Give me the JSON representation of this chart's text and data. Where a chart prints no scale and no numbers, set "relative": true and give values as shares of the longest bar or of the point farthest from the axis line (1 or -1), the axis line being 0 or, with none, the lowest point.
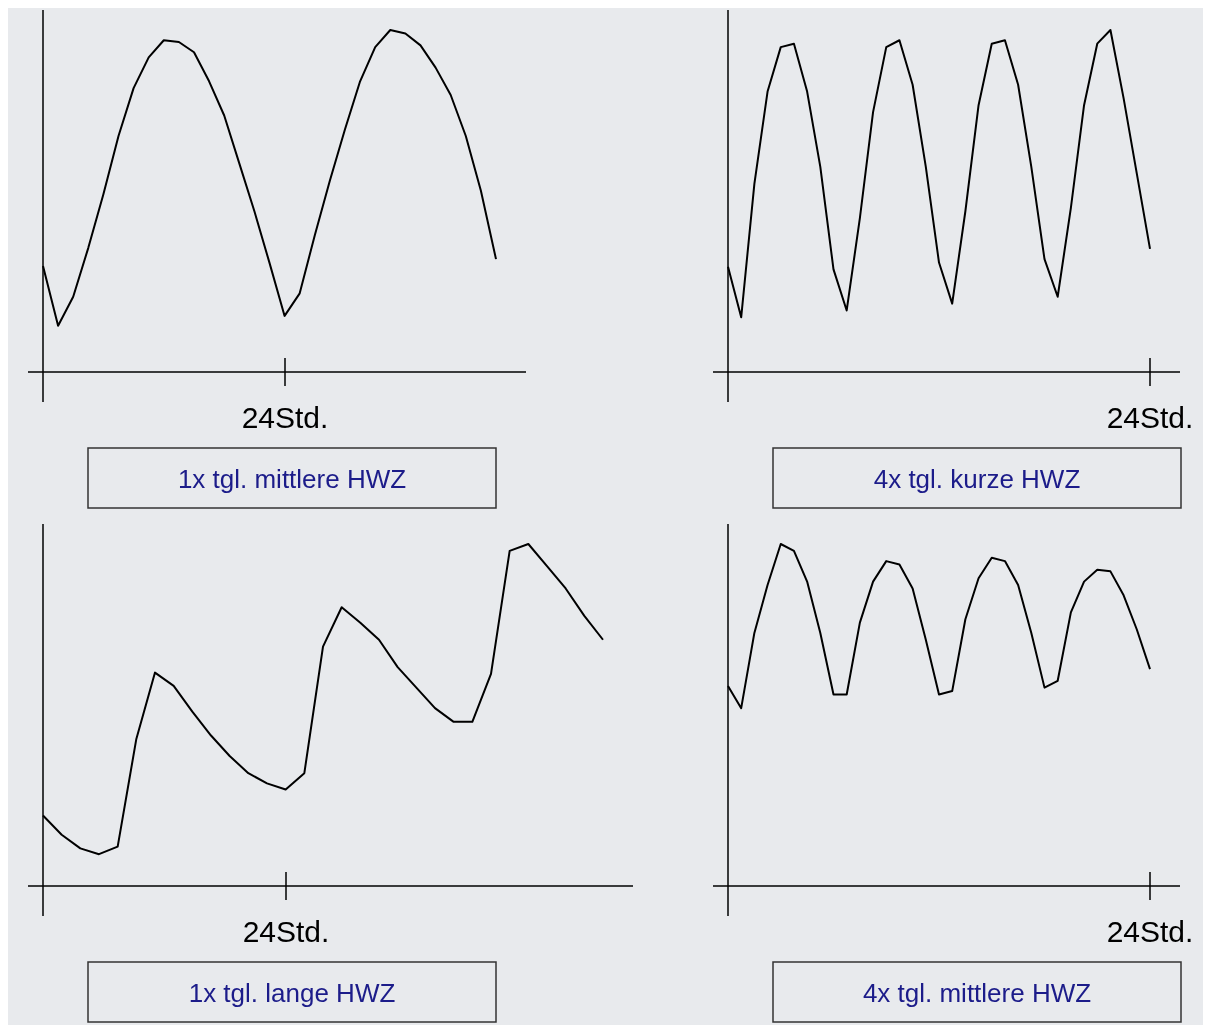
{
  "chart_data": [
    {
      "type": "line",
      "title": "1x tgl. mittlere HWZ",
      "annotations": [
        "24Std."
      ],
      "relative": true,
      "grid": false,
      "marker": "none",
      "line_style": "solid",
      "categories": [
        null,
        null,
        null,
        null,
        null,
        null,
        null,
        null,
        null,
        null,
        null,
        null,
        null,
        null,
        null,
        null,
        null,
        null,
        null,
        null,
        null,
        null,
        null,
        null,
        null,
        null,
        null,
        null,
        null,
        null,
        null
      ],
      "series": [
        {
          "color": "#000000",
          "values": [
            0.31,
            0.135,
            0.22,
            0.363,
            0.52,
            0.69,
            0.83,
            0.92,
            0.97,
            0.965,
            0.935,
            0.85,
            0.75,
            0.61,
            0.47,
            0.319,
            0.164,
            0.23,
            0.4,
            0.56,
            0.71,
            0.85,
            0.95,
            1,
            0.99,
            0.955,
            0.89,
            0.81,
            0.69,
            0.53,
            0.33
          ]
        }
      ]
    },
    {
      "type": "line",
      "title": "4x tgl. kurze HWZ",
      "annotations": [
        "24Std."
      ],
      "relative": true,
      "grid": false,
      "marker": "none",
      "line_style": "solid",
      "categories": [
        null,
        null,
        null,
        null,
        null,
        null,
        null,
        null,
        null,
        null,
        null,
        null,
        null,
        null,
        null,
        null,
        null,
        null,
        null,
        null,
        null,
        null,
        null,
        null,
        null,
        null,
        null,
        null,
        null,
        null,
        null,
        null,
        null
      ],
      "series": [
        {
          "color": "#000000",
          "values": [
            0.308,
            0.16,
            0.55,
            0.82,
            0.95,
            0.96,
            0.82,
            0.6,
            0.3,
            0.18,
            0.45,
            0.76,
            0.95,
            0.97,
            0.84,
            0.6,
            0.32,
            0.2,
            0.47,
            0.78,
            0.96,
            0.97,
            0.84,
            0.6,
            0.33,
            0.22,
            0.48,
            0.78,
            0.96,
            1,
            0.8,
            0.58,
            0.36
          ]
        }
      ]
    },
    {
      "type": "line",
      "title": "1x tgl. lange HWZ",
      "annotations": [
        "24Std."
      ],
      "relative": true,
      "grid": false,
      "marker": "none",
      "line_style": "solid",
      "categories": [
        null,
        null,
        null,
        null,
        null,
        null,
        null,
        null,
        null,
        null,
        null,
        null,
        null,
        null,
        null,
        null,
        null,
        null,
        null,
        null,
        null,
        null,
        null,
        null,
        null,
        null,
        null,
        null,
        null,
        null,
        null
      ],
      "series": [
        {
          "color": "#000000",
          "values": [
            0.206,
            0.15,
            0.11,
            0.093,
            0.115,
            0.43,
            0.624,
            0.585,
            0.51,
            0.44,
            0.38,
            0.33,
            0.3,
            0.282,
            0.33,
            0.7,
            0.815,
            0.77,
            0.72,
            0.64,
            0.58,
            0.52,
            0.48,
            0.48,
            0.62,
            0.98,
            1,
            0.935,
            0.87,
            0.79,
            0.72
          ]
        }
      ]
    },
    {
      "type": "line",
      "title": "4x tgl. mittlere HWZ",
      "annotations": [
        "24Std."
      ],
      "relative": true,
      "grid": false,
      "marker": "none",
      "line_style": "solid",
      "categories": [
        null,
        null,
        null,
        null,
        null,
        null,
        null,
        null,
        null,
        null,
        null,
        null,
        null,
        null,
        null,
        null,
        null,
        null,
        null,
        null,
        null,
        null,
        null,
        null,
        null,
        null,
        null,
        null,
        null,
        null,
        null,
        null,
        null
      ],
      "series": [
        {
          "color": "#000000",
          "values": [
            0.585,
            0.52,
            0.74,
            0.88,
            1,
            0.98,
            0.89,
            0.74,
            0.56,
            0.56,
            0.77,
            0.89,
            0.95,
            0.94,
            0.87,
            0.72,
            0.56,
            0.57,
            0.78,
            0.9,
            0.96,
            0.95,
            0.88,
            0.74,
            0.58,
            0.6,
            0.8,
            0.89,
            0.925,
            0.92,
            0.85,
            0.75,
            0.634
          ]
        }
      ]
    }
  ]
}
